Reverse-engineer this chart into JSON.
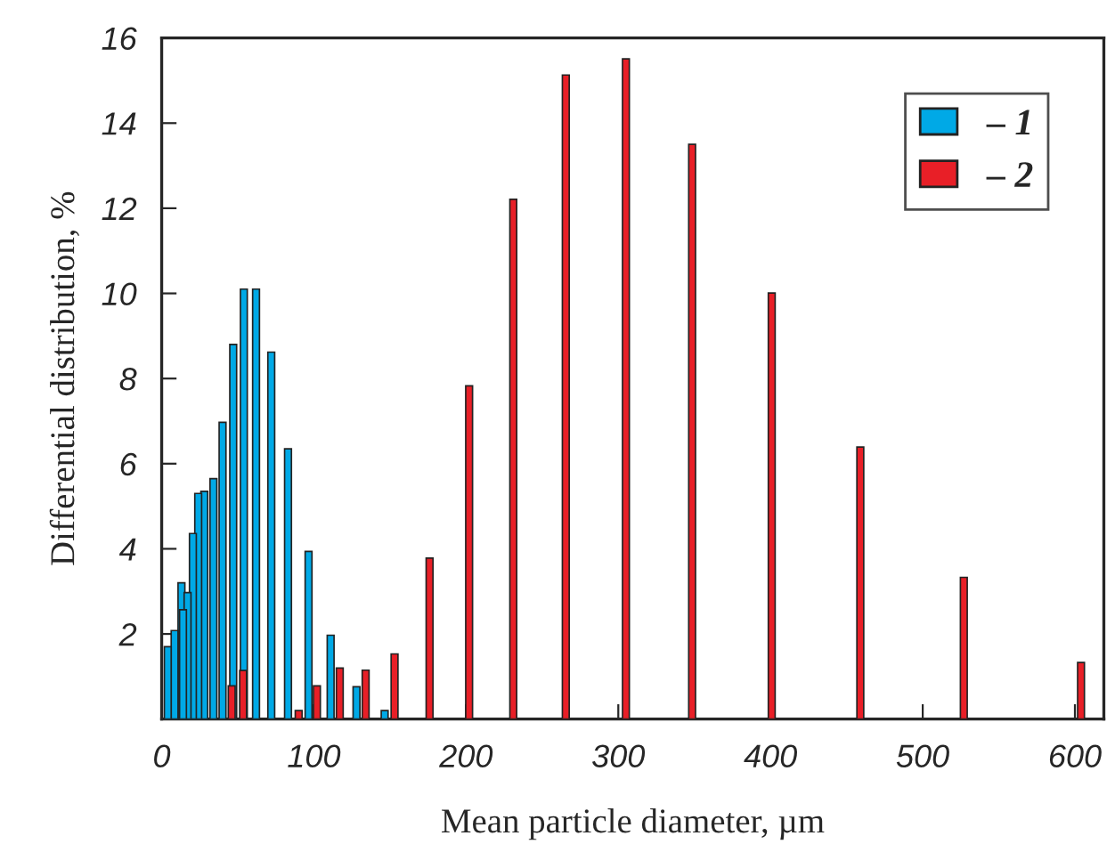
{
  "chart_data": {
    "type": "bar",
    "xlabel": "Mean particle diameter, µm",
    "ylabel": "Differential distribution, %",
    "xlim": [
      0,
      619
    ],
    "ylim": [
      0,
      16
    ],
    "xticks": [
      0,
      100,
      200,
      300,
      400,
      500,
      600
    ],
    "yticks": [
      {
        "value": 0,
        "label": null
      },
      2,
      4,
      6,
      8,
      10,
      12,
      14,
      16
    ],
    "legend": "top right",
    "grid": false,
    "series": [
      {
        "name": "– 1",
        "color": "#00a9e6",
        "x": [
          4,
          8.5,
          13,
          14,
          17,
          20.5,
          24,
          28,
          34,
          40,
          47,
          54,
          62,
          72,
          83,
          96.5,
          111,
          128,
          146.5
        ],
        "values": [
          1.7,
          2.08,
          3.2,
          2.57,
          2.97,
          4.36,
          5.3,
          5.35,
          5.65,
          6.97,
          8.8,
          10.1,
          10.1,
          8.62,
          6.35,
          3.94,
          1.97,
          0.76,
          0.2
        ]
      },
      {
        "name": "– 2",
        "color": "#e81f27",
        "x": [
          46,
          53.5,
          90,
          102,
          117,
          134,
          153,
          176,
          202,
          231,
          265.5,
          305,
          348.5,
          400.8,
          459,
          527,
          604
        ],
        "values": [
          0.78,
          1.14,
          0.2,
          0.78,
          1.2,
          1.15,
          1.53,
          3.78,
          7.83,
          12.21,
          15.13,
          15.51,
          13.5,
          10.01,
          6.39,
          3.33,
          1.33
        ]
      }
    ]
  }
}
